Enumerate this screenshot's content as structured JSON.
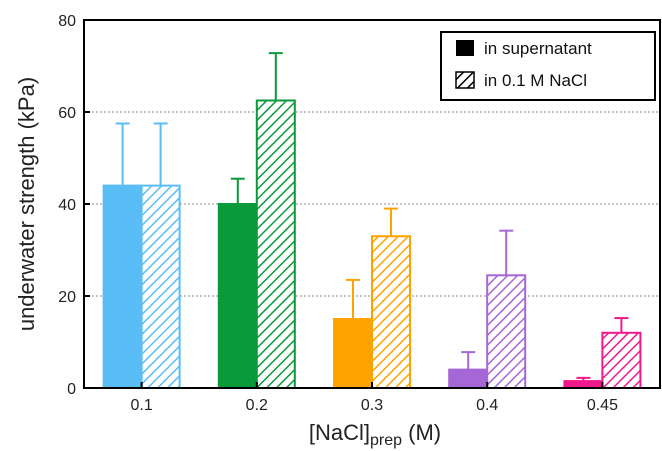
{
  "chart_data": {
    "type": "bar",
    "title": "",
    "xlabel": "[NaCl]",
    "xlabel_sub": "prep",
    "xlabel_unit": " (M)",
    "ylabel": "underwater strength (kPa)",
    "ylim": [
      0,
      80
    ],
    "yticks": [
      "0",
      "20",
      "40",
      "60",
      "80"
    ],
    "grid": "horizontal-dotted",
    "legend_placement": "top-right",
    "categories": [
      "0.1",
      "0.2",
      "0.3",
      "0.4",
      "0.45"
    ],
    "colors": [
      "#5bbdf5",
      "#0a9a3c",
      "#ffa300",
      "#a566d6",
      "#f0198c"
    ],
    "series": [
      {
        "name": "in supernatant",
        "pattern": "solid",
        "values": [
          44,
          40,
          15,
          4,
          1.5
        ],
        "errors": [
          13.5,
          5.5,
          8.5,
          3.8,
          0.7
        ]
      },
      {
        "name": "in 0.1 M NaCl",
        "pattern": "hatched",
        "values": [
          44,
          62.5,
          33,
          24.5,
          12
        ],
        "errors": [
          13.5,
          10.3,
          6,
          9.7,
          3.2
        ]
      }
    ]
  }
}
